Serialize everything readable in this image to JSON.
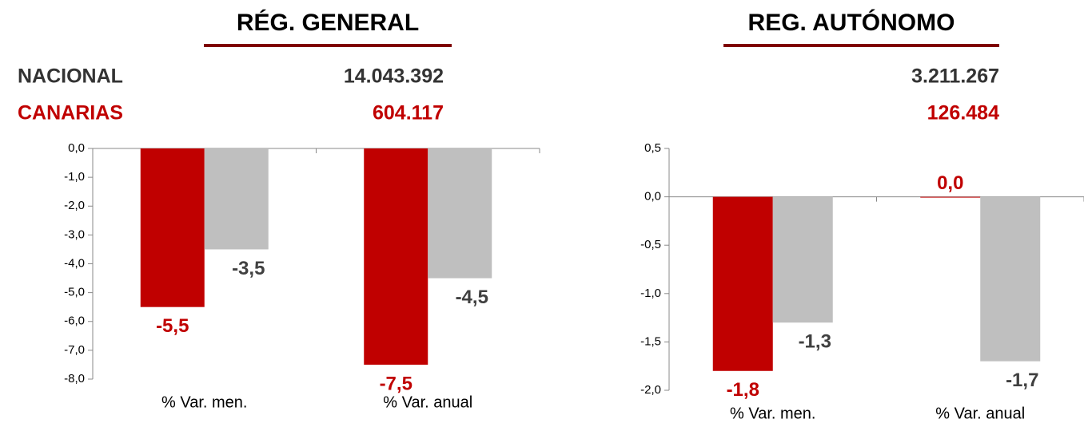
{
  "chart_data": [
    {
      "type": "bar",
      "title": "RÉG. GENERAL",
      "national_total": "14.043.392",
      "canarias_total": "604.117",
      "categories": [
        "% Var. men.",
        "% Var. anual"
      ],
      "series": [
        {
          "name": "CANARIAS",
          "color": "#c00000",
          "values": [
            -5.5,
            -7.5
          ],
          "value_labels": [
            "-5,5",
            "-7,5"
          ]
        },
        {
          "name": "NACIONAL",
          "color": "#bfbfbf",
          "values": [
            -3.5,
            -4.5
          ],
          "value_labels": [
            "-3,5",
            "-4,5"
          ]
        }
      ],
      "ylim": [
        -8,
        0
      ],
      "yticks": [
        {
          "value": 0,
          "label": "0,0"
        },
        {
          "value": -1,
          "label": "-1,0"
        },
        {
          "value": -2,
          "label": "-2,0"
        },
        {
          "value": -3,
          "label": "-3,0"
        },
        {
          "value": -4,
          "label": "-4,0"
        },
        {
          "value": -5,
          "label": "-5,0"
        },
        {
          "value": -6,
          "label": "-6,0"
        },
        {
          "value": -7,
          "label": "-7,0"
        },
        {
          "value": -8,
          "label": "-8,0"
        }
      ]
    },
    {
      "type": "bar",
      "title": "REG. AUTÓNOMO",
      "national_total": "3.211.267",
      "canarias_total": "126.484",
      "categories": [
        "% Var. men.",
        "% Var. anual"
      ],
      "series": [
        {
          "color": "#c00000",
          "values": [
            -1.8,
            0.0
          ],
          "value_labels": [
            "-1,8",
            "0,0"
          ]
        },
        {
          "color": "#bfbfbf",
          "values": [
            -1.3,
            -1.7
          ],
          "value_labels": [
            "-1,3",
            "-1,7"
          ]
        }
      ],
      "ylim": [
        -2,
        0.5
      ],
      "yticks": [
        {
          "value": 0.5,
          "label": "0,5"
        },
        {
          "value": 0,
          "label": "0,0"
        },
        {
          "value": -0.5,
          "label": "-0,5"
        },
        {
          "value": -1,
          "label": "-1,0"
        },
        {
          "value": -1.5,
          "label": "-1,5"
        },
        {
          "value": -2,
          "label": "-2,0"
        }
      ]
    }
  ]
}
